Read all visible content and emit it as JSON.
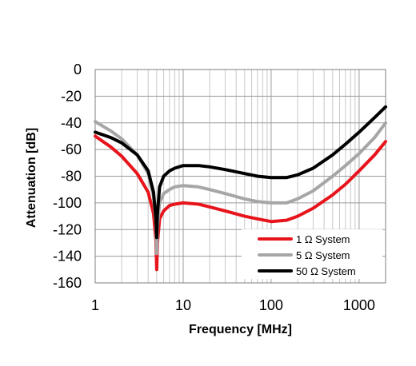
{
  "chart_data": {
    "type": "line",
    "xlabel": "Frequency [MHz]",
    "ylabel": "Attenuation [dB]",
    "x_scale": "log",
    "xlim": [
      1,
      2000
    ],
    "ylim": [
      -160,
      0
    ],
    "grid": true,
    "legend_position": "bottom-right",
    "x_ticks": [
      {
        "value": 1,
        "label": "1"
      },
      {
        "value": 10,
        "label": "10"
      },
      {
        "value": 100,
        "label": "100"
      },
      {
        "value": 1000,
        "label": "1000"
      }
    ],
    "y_ticks": [
      {
        "value": 0,
        "label": "0"
      },
      {
        "value": -20,
        "label": "-20"
      },
      {
        "value": -40,
        "label": "-40"
      },
      {
        "value": -60,
        "label": "-60"
      },
      {
        "value": -80,
        "label": "-80"
      },
      {
        "value": -100,
        "label": "-100"
      },
      {
        "value": -120,
        "label": "-120"
      },
      {
        "value": -140,
        "label": "-140"
      },
      {
        "value": -160,
        "label": "-160"
      }
    ],
    "series": [
      {
        "name": "1 Ω System",
        "color": "#e8141c",
        "x": [
          1,
          1.5,
          2,
          3,
          4,
          4.6,
          4.9,
          5.0,
          5.1,
          5.4,
          6,
          7,
          8,
          10,
          15,
          20,
          30,
          50,
          70,
          100,
          150,
          200,
          300,
          500,
          700,
          1000,
          1500,
          2000
        ],
        "y": [
          -50,
          -58,
          -65,
          -78,
          -92,
          -108,
          -128,
          -150,
          -130,
          -112,
          -106,
          -102,
          -101,
          -100,
          -101,
          -103,
          -106,
          -110,
          -112,
          -114,
          -113,
          -110,
          -104,
          -94,
          -86,
          -76,
          -64,
          -54
        ]
      },
      {
        "name": "5 Ω System",
        "color": "#a6a6a6",
        "x": [
          1,
          1.5,
          2,
          3,
          4,
          4.6,
          4.9,
          5.0,
          5.1,
          5.4,
          6,
          7,
          8,
          10,
          15,
          20,
          30,
          50,
          70,
          100,
          150,
          200,
          300,
          500,
          700,
          1000,
          1500,
          2000
        ],
        "y": [
          -39,
          -46,
          -52,
          -64,
          -78,
          -95,
          -115,
          -138,
          -118,
          -100,
          -93,
          -90,
          -88,
          -87,
          -88,
          -90,
          -93,
          -97,
          -99,
          -100,
          -100,
          -97,
          -91,
          -80,
          -72,
          -63,
          -51,
          -40
        ]
      },
      {
        "name": "50 Ω System",
        "color": "#000000",
        "x": [
          1,
          1.5,
          2,
          3,
          4,
          4.6,
          4.9,
          5.0,
          5.1,
          5.4,
          6,
          7,
          8,
          10,
          15,
          20,
          30,
          50,
          70,
          100,
          150,
          200,
          300,
          500,
          700,
          1000,
          1500,
          2000
        ],
        "y": [
          -47,
          -51,
          -55,
          -64,
          -76,
          -92,
          -112,
          -126,
          -108,
          -88,
          -80,
          -76,
          -74,
          -72,
          -72,
          -73,
          -75,
          -78,
          -80,
          -81,
          -81,
          -79,
          -74,
          -64,
          -56,
          -47,
          -36,
          -28
        ]
      }
    ]
  }
}
